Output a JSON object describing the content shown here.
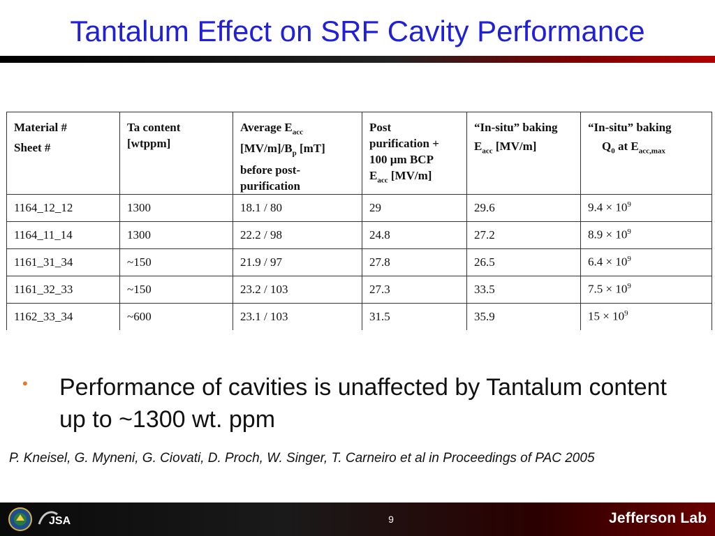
{
  "title": "Tantalum Effect on SRF Cavity Performance",
  "table": {
    "headers": {
      "material": [
        "Material #",
        "Sheet #"
      ],
      "ta": [
        "Ta content",
        "[wtppm]"
      ],
      "avg": {
        "l1": "Average E",
        "l1_sub": "acc",
        "l2a": "[MV/m]/B",
        "l2_sub": "p",
        "l2b": " [mT]",
        "l3": "before post-",
        "l4": "purification"
      },
      "post": {
        "l1": "Post",
        "l2": "purification +",
        "l3": "100 µm BCP",
        "l4": "E",
        "l4_sub": "acc",
        "l4b": " [MV/m]"
      },
      "insitu_e": {
        "l1": "“In-situ” baking",
        "l2": "E",
        "l2_sub": "acc",
        "l2b": " [MV/m]"
      },
      "insitu_q": {
        "l1": "“In-situ” baking",
        "l2": "Q",
        "l2_sub": "0",
        "l2b": " at E",
        "l2_sub2": "acc,max"
      }
    },
    "rows": [
      {
        "material": "1164_12_12",
        "ta": "1300",
        "avg": "18.1 /  80",
        "post": "29",
        "eacc": "29.6",
        "q0": "9.4 × 10",
        "q0_exp": "9"
      },
      {
        "material": "1164_11_14",
        "ta": "1300",
        "avg": "22.2 /  98",
        "post": "24.8",
        "eacc": "27.2",
        "q0": "8.9 × 10",
        "q0_exp": "9"
      },
      {
        "material": "1161_31_34",
        "ta": "~150",
        "avg": "21.9 /  97",
        "post": "27.8",
        "eacc": "26.5",
        "q0": "6.4 × 10",
        "q0_exp": "9"
      },
      {
        "material": "1161_32_33",
        "ta": "~150",
        "avg": "23.2 / 103",
        "post": "27.3",
        "eacc": "33.5",
        "q0": "7.5 × 10",
        "q0_exp": "9"
      },
      {
        "material": "1162_33_34",
        "ta": "~600",
        "avg": "23.1 / 103",
        "post": "31.5",
        "eacc": "35.9",
        "q0": "15 × 10",
        "q0_exp": "9"
      }
    ]
  },
  "bullet": {
    "symbol": "•",
    "text": "Performance of cavities is unaffected by Tantalum content up to ~1300 wt. ppm"
  },
  "citation": "P. Kneisel, G. Myneni, G. Ciovati, D. Proch, W. Singer, T. Carneiro et al in Proceedings of PAC 2005",
  "footer": {
    "page_number": "9",
    "jsa_text": "JSA",
    "logo_text": "Jefferson Lab"
  },
  "colors": {
    "title": "#2020d8",
    "bullet": "#e07a2c"
  }
}
